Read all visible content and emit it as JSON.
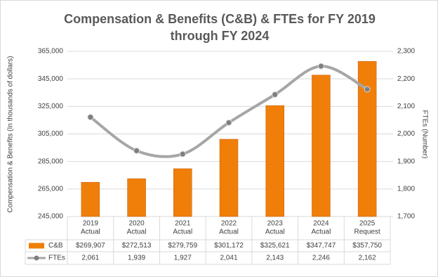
{
  "chart_data": {
    "type": "bar",
    "title": "Compensation  & Benefits (C&B) & FTEs for FY 2019 through FY 2024",
    "y_label": "Compensation & Benefits (In thousands of dollars)",
    "y2_label": "FTEs (Number)",
    "categories": [
      [
        "2019",
        "Actual"
      ],
      [
        "2020",
        "Actual"
      ],
      [
        "2021",
        "Actual"
      ],
      [
        "2022",
        "Actual"
      ],
      [
        "2023",
        "Actual"
      ],
      [
        "2024",
        "Actual"
      ],
      [
        "2025",
        "Request"
      ]
    ],
    "series": [
      {
        "name": "C&B",
        "type": "bar",
        "color": "#f07f09",
        "values": [
          269907,
          272513,
          279759,
          301172,
          325621,
          347747,
          357750
        ],
        "value_labels": [
          "$269,907",
          "$272,513",
          "$279,759",
          "$301,172",
          "$325,621",
          "$347,747",
          "$357,750"
        ]
      },
      {
        "name": "FTEs",
        "type": "line",
        "axis": "y2",
        "color": "#a6a6a6",
        "values": [
          2061,
          1939,
          1927,
          2041,
          2143,
          2246,
          2162
        ],
        "value_labels": [
          "2,061",
          "1,939",
          "1,927",
          "2,041",
          "2,143",
          "2,246",
          "2,162"
        ]
      }
    ],
    "ylim": [
      245000,
      365000
    ],
    "yticks": [
      {
        "value": 245000,
        "label": "245,000"
      },
      {
        "value": 265000,
        "label": "265,000"
      },
      {
        "value": 285000,
        "label": "285,000"
      },
      {
        "value": 305000,
        "label": "305,000"
      },
      {
        "value": 325000,
        "label": "325,000"
      },
      {
        "value": 345000,
        "label": "345,000"
      },
      {
        "value": 365000,
        "label": "365,000"
      }
    ],
    "y2lim": [
      1700,
      2300
    ],
    "y2ticks": [
      {
        "value": 1700,
        "label": "1,700"
      },
      {
        "value": 1800,
        "label": "1,800"
      },
      {
        "value": 1900,
        "label": "1,900"
      },
      {
        "value": 2000,
        "label": "2,000"
      },
      {
        "value": 2100,
        "label": "2,100"
      },
      {
        "value": 2200,
        "label": "2,200"
      },
      {
        "value": 2300,
        "label": "2,300"
      }
    ],
    "grid": true
  }
}
